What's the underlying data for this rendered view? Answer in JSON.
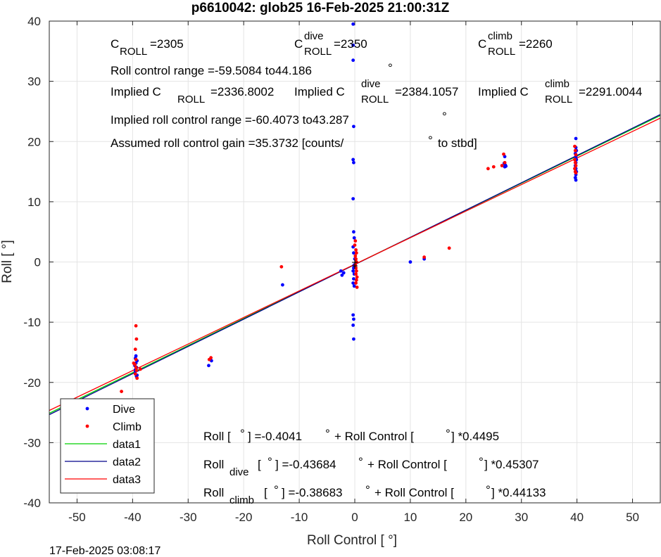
{
  "chart_data": {
    "type": "scatter",
    "title": "p6610042: glob25 16-Feb-2025 21:00:31Z",
    "xlabel": "Roll Control [   °]",
    "ylabel": "Roll [   °]",
    "xlim": [
      -55,
      55
    ],
    "ylim": [
      -40,
      40
    ],
    "xticks": [
      -50,
      -40,
      -30,
      -20,
      -10,
      0,
      10,
      20,
      30,
      40,
      50
    ],
    "yticks": [
      -40,
      -30,
      -20,
      -10,
      0,
      10,
      20,
      30,
      40
    ],
    "grid": true,
    "legend_position": "bottom-left",
    "timestamp": "17-Feb-2025 03:08:17",
    "series": [
      {
        "name": "Dive",
        "kind": "points",
        "color": "#0000ff",
        "points": [
          [
            -39.5,
            -16.0
          ],
          [
            -39.4,
            -16.8
          ],
          [
            -39.3,
            -17.5
          ],
          [
            -39.5,
            -18.2
          ],
          [
            -39.2,
            -18.8
          ],
          [
            -39.6,
            -17.2
          ],
          [
            -39.4,
            -15.6
          ],
          [
            -39.3,
            -19.0
          ],
          [
            -39.5,
            -17.9
          ],
          [
            -39.2,
            -16.4
          ],
          [
            -26.3,
            -17.2
          ],
          [
            -25.8,
            -16.4
          ],
          [
            -13.0,
            -3.8
          ],
          [
            -2.5,
            -1.5
          ],
          [
            -2.3,
            -2.2
          ],
          [
            -2.0,
            -1.8
          ],
          [
            -0.3,
            39.5
          ],
          [
            -0.3,
            36.0
          ],
          [
            -0.3,
            33.5
          ],
          [
            -0.2,
            22.5
          ],
          [
            -0.3,
            17.0
          ],
          [
            -0.2,
            16.5
          ],
          [
            -0.3,
            10.5
          ],
          [
            -0.2,
            5.0
          ],
          [
            -0.1,
            4.0
          ],
          [
            -0.3,
            2.5
          ],
          [
            -0.2,
            1.5
          ],
          [
            0.0,
            0.5
          ],
          [
            -0.1,
            -0.5
          ],
          [
            -0.2,
            -1.0
          ],
          [
            -0.3,
            -1.5
          ],
          [
            -0.1,
            -2.0
          ],
          [
            -0.2,
            -2.8
          ],
          [
            -0.3,
            -3.5
          ],
          [
            -0.1,
            -4.0
          ],
          [
            -0.3,
            -8.8
          ],
          [
            -0.2,
            -9.5
          ],
          [
            -0.3,
            -10.5
          ],
          [
            -0.2,
            -12.8
          ],
          [
            10.0,
            0.0
          ],
          [
            12.5,
            0.5
          ],
          [
            27.0,
            15.8
          ],
          [
            27.1,
            16.1
          ],
          [
            26.9,
            16.4
          ],
          [
            27.0,
            17.5
          ],
          [
            27.2,
            15.9
          ],
          [
            39.8,
            20.5
          ],
          [
            39.8,
            19.0
          ],
          [
            39.9,
            18.5
          ],
          [
            39.7,
            18.0
          ],
          [
            39.8,
            17.5
          ],
          [
            39.9,
            17.0
          ],
          [
            39.8,
            16.5
          ],
          [
            39.7,
            16.0
          ],
          [
            39.8,
            15.5
          ],
          [
            39.9,
            15.0
          ],
          [
            39.8,
            14.5
          ],
          [
            39.7,
            14.0
          ],
          [
            39.8,
            13.6
          ]
        ]
      },
      {
        "name": "Climb",
        "kind": "points",
        "color": "#ff0000",
        "points": [
          [
            -42.0,
            -21.5
          ],
          [
            -39.4,
            -10.6
          ],
          [
            -39.3,
            -12.8
          ],
          [
            -39.5,
            -14.5
          ],
          [
            -39.4,
            -16.2
          ],
          [
            -39.6,
            -17.0
          ],
          [
            -39.3,
            -18.0
          ],
          [
            -39.5,
            -18.6
          ],
          [
            -39.2,
            -19.3
          ],
          [
            -39.4,
            -17.5
          ],
          [
            -39.3,
            -23.8
          ],
          [
            -39.4,
            -26.0
          ],
          [
            -38.6,
            -17.8
          ],
          [
            -39.8,
            -16.8
          ],
          [
            -26.2,
            -16.2
          ],
          [
            -25.9,
            -15.9
          ],
          [
            -13.2,
            -0.8
          ],
          [
            0.1,
            3.5
          ],
          [
            0.0,
            2.8
          ],
          [
            0.2,
            2.0
          ],
          [
            0.3,
            1.5
          ],
          [
            0.1,
            1.0
          ],
          [
            0.2,
            0.5
          ],
          [
            0.3,
            0.0
          ],
          [
            0.1,
            -0.5
          ],
          [
            0.2,
            -1.0
          ],
          [
            0.3,
            -1.5
          ],
          [
            0.2,
            -2.0
          ],
          [
            0.4,
            -2.5
          ],
          [
            0.3,
            -3.0
          ],
          [
            0.2,
            -3.5
          ],
          [
            0.4,
            -4.2
          ],
          [
            12.5,
            0.8
          ],
          [
            17.0,
            2.3
          ],
          [
            24.0,
            15.5
          ],
          [
            25.0,
            15.8
          ],
          [
            26.5,
            16.0
          ],
          [
            26.8,
            17.9
          ],
          [
            27.0,
            16.5
          ],
          [
            39.6,
            19.2
          ],
          [
            39.7,
            18.5
          ],
          [
            39.8,
            17.8
          ],
          [
            39.6,
            17.0
          ],
          [
            39.7,
            16.5
          ],
          [
            39.8,
            16.0
          ],
          [
            39.6,
            15.5
          ],
          [
            39.7,
            15.0
          ],
          [
            39.8,
            14.8
          ]
        ]
      },
      {
        "name": "data1",
        "kind": "line",
        "color": "#00d000",
        "intercept": -0.4041,
        "slope": 0.4495
      },
      {
        "name": "data2",
        "kind": "line",
        "color": "#00008b",
        "intercept": -0.43684,
        "slope": 0.45307
      },
      {
        "name": "data3",
        "kind": "line",
        "color": "#ff0000",
        "intercept": -0.38683,
        "slope": 0.44133
      }
    ],
    "origin_markers": [
      [
        0.0,
        0.0
      ],
      [
        0.0,
        -0.6
      ]
    ],
    "annotations": {
      "c_roll": {
        "sym": "C",
        "sub": "ROLL",
        "val": "=2305"
      },
      "c_roll_dive": {
        "sym": "C",
        "sup": "dive",
        "sub": "ROLL",
        "val": "=2350"
      },
      "c_roll_climb": {
        "sym": "C",
        "sup": "climb",
        "sub": "ROLL",
        "val": "=2260"
      },
      "range": "Roll control range =-59.5084 to44.186",
      "range_marker": "°",
      "implied": {
        "prefix": "Implied C",
        "sub": "ROLL",
        "val": "=2336.8002"
      },
      "implied_dive": {
        "prefix": "Implied C",
        "sup": "dive",
        "sub": "ROLL",
        "val": "=2384.1057"
      },
      "implied_climb": {
        "prefix": "Implied C",
        "sup": "climb",
        "sub": "ROLL",
        "val": "=2291.0044"
      },
      "implied_range": "Implied roll control range =-60.4073 to43.287",
      "implied_range_marker": "°",
      "gain": "Assumed roll control gain =35.3732 [counts/",
      "gain_marker": "°",
      "gain_suffix": "to stbd]",
      "fit": {
        "lead": "Roll [",
        "deg1": "°",
        "mid": "] =-0.4041",
        "deg2": "°",
        "mid2": "+ Roll Control [",
        "deg3": "°",
        "tail": "] *0.4495"
      },
      "fit_dive": {
        "lead": "Roll",
        "sub": "dive",
        "open": "[",
        "deg1": "°",
        "mid": "] =-0.43684",
        "deg2": "°",
        "mid2": "+ Roll Control [",
        "deg3": "°",
        "tail": "] *0.45307"
      },
      "fit_climb": {
        "lead": "Roll",
        "sub": "climb",
        "open": "[",
        "deg1": "°",
        "mid": "] =-0.38683",
        "deg2": "°",
        "mid2": "+ Roll Control [",
        "deg3": "°",
        "tail": "] *0.44133"
      }
    }
  }
}
